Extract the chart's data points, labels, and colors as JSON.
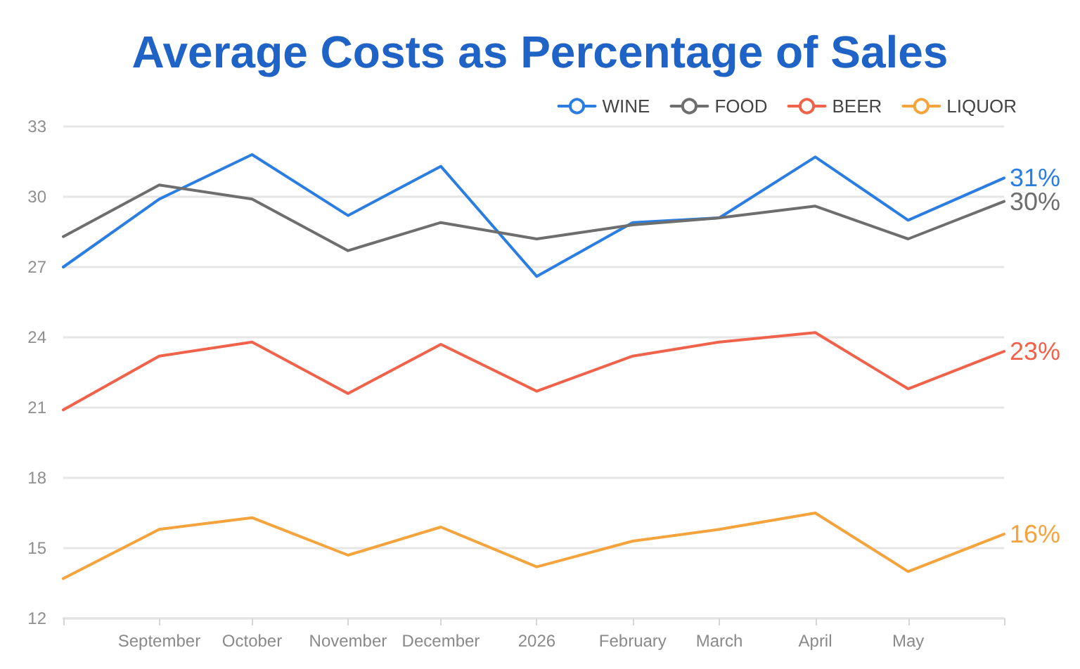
{
  "chart_data": {
    "type": "line",
    "title": "Average Costs as Percentage of Sales",
    "x": [
      "2025-08-01",
      "2025-09-01",
      "2025-10-01",
      "2025-11-01",
      "2025-12-01",
      "2026-01-01",
      "2026-02-01",
      "2026-03-01",
      "2026-04-01",
      "2026-05-01",
      "2026-06-01"
    ],
    "series": [
      {
        "name": "WINE",
        "color": "#2a7de1",
        "values": [
          27.0,
          29.9,
          31.8,
          29.2,
          31.3,
          26.6,
          28.9,
          29.1,
          31.7,
          29.0,
          30.8
        ],
        "value_labels": [
          null,
          null,
          null,
          null,
          null,
          null,
          null,
          null,
          null,
          null,
          "31%"
        ]
      },
      {
        "name": "FOOD",
        "color": "#6e6e6e",
        "values": [
          28.3,
          30.5,
          29.9,
          27.7,
          28.9,
          28.2,
          28.8,
          29.1,
          29.6,
          28.2,
          29.8
        ],
        "value_labels": [
          null,
          null,
          null,
          null,
          null,
          null,
          null,
          null,
          null,
          null,
          "30%"
        ]
      },
      {
        "name": "BEER",
        "color": "#f0624a",
        "values": [
          20.9,
          23.2,
          23.8,
          21.6,
          23.7,
          21.7,
          23.2,
          23.8,
          24.2,
          21.8,
          23.4
        ],
        "value_labels": [
          null,
          null,
          null,
          null,
          null,
          null,
          null,
          null,
          null,
          null,
          "23%"
        ]
      },
      {
        "name": "LIQUOR",
        "color": "#f5a33c",
        "values": [
          13.7,
          15.8,
          16.3,
          14.7,
          15.9,
          14.2,
          15.3,
          15.8,
          16.5,
          14.0,
          15.6
        ],
        "value_labels": [
          null,
          null,
          null,
          null,
          null,
          null,
          null,
          null,
          null,
          null,
          "16%"
        ]
      }
    ],
    "xlim": [
      "2025-08-01",
      "2026-06-01"
    ],
    "xticks": [
      {
        "value": "2025-08-01",
        "label": null
      },
      {
        "value": "2025-09-01",
        "label": "September"
      },
      {
        "value": "2025-10-01",
        "label": "October"
      },
      {
        "value": "2025-11-01",
        "label": "November"
      },
      {
        "value": "2025-12-01",
        "label": "December"
      },
      {
        "value": "2026-01-01",
        "label": "2026"
      },
      {
        "value": "2026-02-01",
        "label": "February"
      },
      {
        "value": "2026-03-01",
        "label": "March"
      },
      {
        "value": "2026-04-01",
        "label": "April"
      },
      {
        "value": "2026-05-01",
        "label": "May"
      },
      {
        "value": "2026-06-01",
        "label": null
      }
    ],
    "ylim": [
      12,
      33
    ],
    "yticks": [
      12,
      15,
      18,
      21,
      24,
      27,
      30,
      33
    ],
    "grid": "y",
    "legend": "top right",
    "marker": "none",
    "line_style": "solid"
  }
}
